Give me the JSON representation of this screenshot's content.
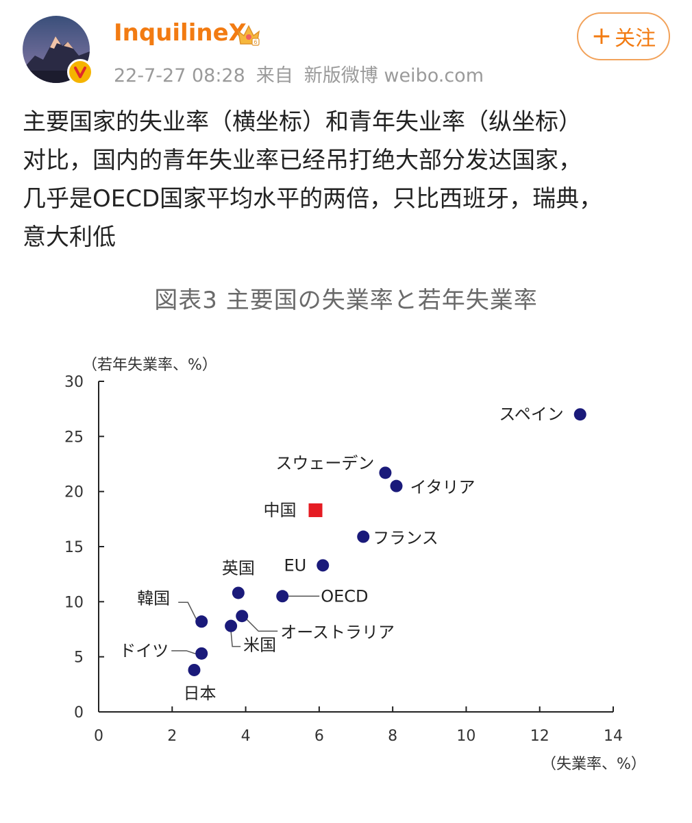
{
  "post": {
    "username": "InquilineX",
    "timestamp": "22-7-27 08:28",
    "source_prefix": "来自",
    "source": "新版微博 weibo.com",
    "follow_label": "关注",
    "follow_plus": "+",
    "text_lines": [
      "主要国家的失业率（横坐标）和青年失业率（纵坐标）",
      "对比，国内的青年失业率已经吊打绝大部分发达国家，",
      "几乎是OECD国家平均水平的两倍，只比西班牙，瑞典，",
      "意大利低"
    ]
  },
  "icons": {
    "avatar": "mountain-avatar",
    "verified": "verified-badge-icon",
    "member": "crown-icon"
  },
  "colors": {
    "username": "#f27b12",
    "meta": "#9a9a9a",
    "point": "#1a1a7a",
    "highlight": "#e51c23"
  },
  "chart_data": {
    "type": "scatter",
    "title": "図表3 主要国の失業率と若年失業率",
    "xlabel": "（失業率、%）",
    "ylabel": "（若年失業率、%）",
    "xlim": [
      0,
      14
    ],
    "ylim": [
      0,
      30
    ],
    "xticks": [
      "0",
      "2",
      "4",
      "6",
      "8",
      "10",
      "12",
      "14"
    ],
    "yticks": [
      "0",
      "5",
      "10",
      "15",
      "20",
      "25",
      "30"
    ],
    "grid": false,
    "points": [
      {
        "label": "スペイン",
        "x": 13.1,
        "y": 27.0
      },
      {
        "label": "スウェーデン",
        "x": 7.8,
        "y": 21.7
      },
      {
        "label": "イタリア",
        "x": 8.1,
        "y": 20.5
      },
      {
        "label": "中国",
        "x": 5.9,
        "y": 18.3,
        "highlight": true
      },
      {
        "label": "フランス",
        "x": 7.2,
        "y": 15.9
      },
      {
        "label": "EU",
        "x": 6.1,
        "y": 13.3
      },
      {
        "label": "英国",
        "x": 3.8,
        "y": 10.8
      },
      {
        "label": "OECD",
        "x": 5.0,
        "y": 10.5
      },
      {
        "label": "韓国",
        "x": 2.8,
        "y": 8.2
      },
      {
        "label": "オーストラリア",
        "x": 3.9,
        "y": 8.7
      },
      {
        "label": "米国",
        "x": 3.6,
        "y": 7.8
      },
      {
        "label": "ドイツ",
        "x": 2.8,
        "y": 5.3
      },
      {
        "label": "日本",
        "x": 2.6,
        "y": 3.8
      }
    ]
  }
}
